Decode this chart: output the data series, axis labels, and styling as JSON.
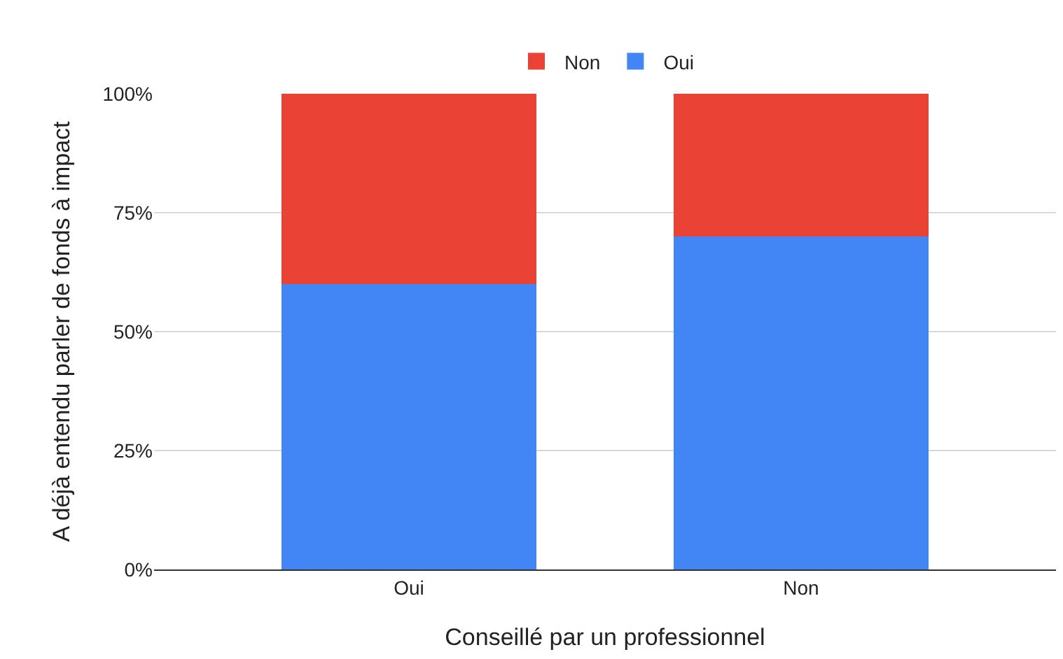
{
  "chart_data": {
    "type": "bar",
    "stacked": true,
    "xlabel": "Conseillé par un professionnel",
    "ylabel": "A déjà entendu parler de fonds à impact",
    "categories": [
      "Oui",
      "Non"
    ],
    "series": [
      {
        "name": "Oui",
        "color": "#4285f4",
        "values": [
          60,
          70
        ]
      },
      {
        "name": "Non",
        "color": "#ea4335",
        "values": [
          40,
          30
        ]
      }
    ],
    "ylim": [
      0,
      100
    ],
    "yticks": [
      {
        "value": 0,
        "label": "0%"
      },
      {
        "value": 25,
        "label": "25%"
      },
      {
        "value": 50,
        "label": "50%"
      },
      {
        "value": 75,
        "label": "75%"
      },
      {
        "value": 100,
        "label": "100%"
      }
    ],
    "grid": "y",
    "legend": "top"
  }
}
